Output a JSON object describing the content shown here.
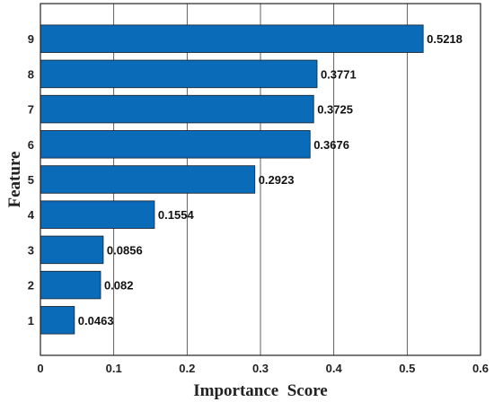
{
  "chart_data": {
    "type": "bar",
    "orientation": "horizontal",
    "categories": [
      "1",
      "2",
      "3",
      "4",
      "5",
      "6",
      "7",
      "8",
      "9"
    ],
    "values": [
      0.0463,
      0.082,
      0.0856,
      0.1554,
      0.2923,
      0.3676,
      0.3725,
      0.3771,
      0.5218
    ],
    "value_labels": [
      "0.0463",
      "0.082",
      "0.0856",
      "0.1554",
      "0.2923",
      "0.3676",
      "0.3725",
      "0.3771",
      "0.5218"
    ],
    "xlabel": "Importance  Score",
    "ylabel": "Feature",
    "xlim": [
      0,
      0.6
    ],
    "xticks": [
      0,
      0.1,
      0.2,
      0.3,
      0.4,
      0.5,
      0.6
    ],
    "xtick_labels": [
      "0",
      "0.1",
      "0.2",
      "0.3",
      "0.4",
      "0.5",
      "0.6"
    ],
    "grid": "vertical",
    "legend": "none",
    "colors": {
      "bar": "#0a6bb8",
      "bar_edge": "#1f2a38",
      "grid": "#3a3a3a",
      "axes": "#222222"
    }
  }
}
